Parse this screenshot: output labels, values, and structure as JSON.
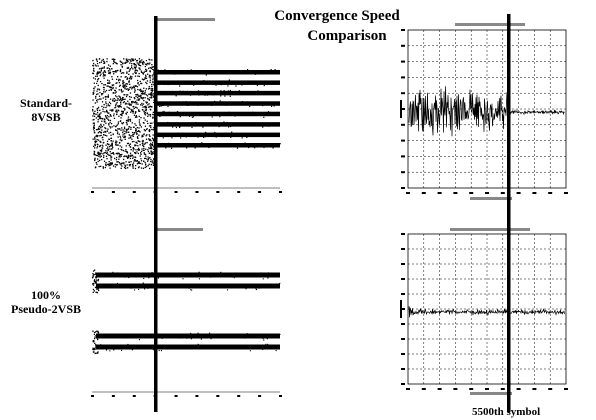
{
  "title_line1": "Convergence Speed",
  "title_line2": "Comparison",
  "row_labels": {
    "standard": "Standard-\n8VSB",
    "pseudo": "100%\nPseudo-2VSB"
  },
  "marker_annotation": "5500th symbol",
  "colors": {
    "background": "#ffffff",
    "data": "#000000",
    "marker": "#000000",
    "grid": "#000000"
  },
  "chart_data": [
    {
      "type": "scatter",
      "panel": "top-left",
      "description_label": "Standard-8VSB",
      "levels": 8,
      "behavior": "wide random spread before convergence marker, then 8 distinct horizontal levels",
      "grid": false
    },
    {
      "type": "line",
      "panel": "top-right",
      "description_label": "Standard-8VSB",
      "behavior": "large noisy error signal until convergence marker near 5500th symbol, then small near-zero error",
      "grid": true
    },
    {
      "type": "scatter",
      "panel": "bottom-left",
      "description_label": "100% Pseudo-2VSB",
      "levels": 4,
      "behavior": "four horizontal levels present from start; converges almost immediately",
      "grid": false
    },
    {
      "type": "line",
      "panel": "bottom-right",
      "description_label": "100% Pseudo-2VSB",
      "behavior": "brief spike at start, then small constant-amplitude error throughout",
      "grid": true
    }
  ]
}
